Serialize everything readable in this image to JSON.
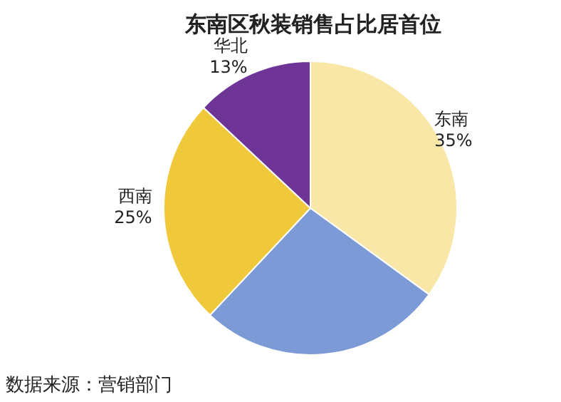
{
  "chart_data": {
    "type": "pie",
    "title": "东南区秋装销售占比居首位",
    "categories": [
      "东南",
      null,
      "西南",
      "华北"
    ],
    "values": [
      35,
      27,
      25,
      13
    ],
    "colors": [
      "#f9e7a8",
      "#7b9ad6",
      "#f0c93b",
      "#6e3596"
    ],
    "value_labels": [
      "35%",
      null,
      "25%",
      "13%"
    ],
    "annotations": [
      "数据来源：营销部门"
    ]
  }
}
